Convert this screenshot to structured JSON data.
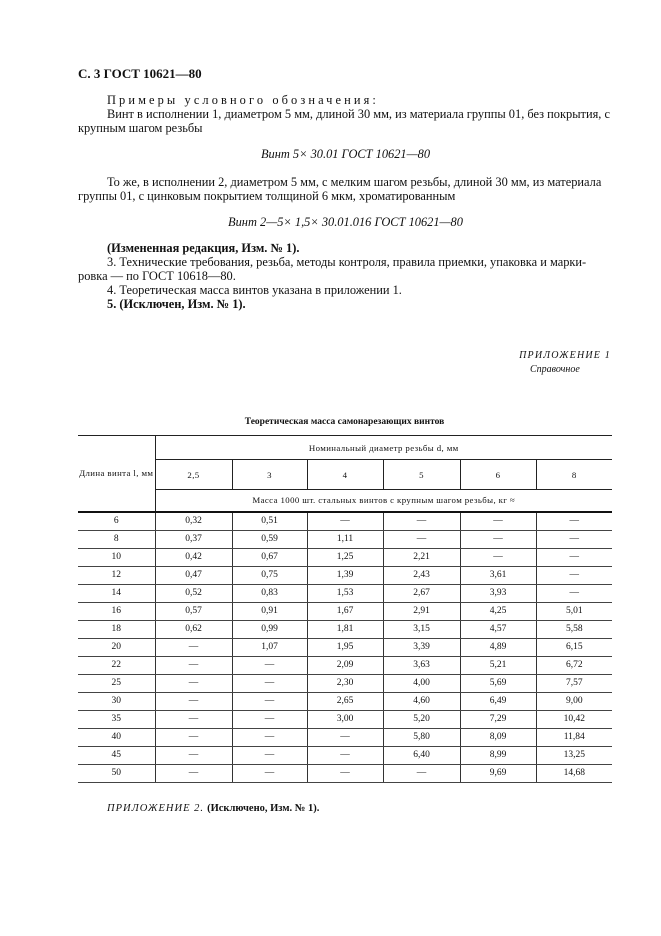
{
  "header": "С. 3 ГОСТ 10621—80",
  "examples_heading": "Примеры условного обозначения:",
  "example1_line1": "Винт в исполнении 1, диаметром 5 мм, длиной 30 мм, из материала группы 01, без покрытия, с",
  "example1_line2": "крупным шагом резьбы",
  "formula1": "Винт 5× 30.01 ГОСТ 10621—80",
  "example2_line1": "То же, в исполнении 2, диаметром 5 мм, с мелким шагом резьбы, длиной 30 мм, из материала",
  "example2_line2": "группы 01, с цинковым покрытием толщиной 6 мкм, хроматированным",
  "formula2": "Винт 2—5× 1,5× 30.01.016 ГОСТ 10621—80",
  "amended": "(Измененная редакция, Изм. № 1).",
  "item3_line1": "3.  Технические требования, резьба, методы контроля, правила приемки, упаковка и марки-",
  "item3_line2": "ровка — по ГОСТ 10618—80.",
  "item4": "4.  Теоретическая масса винтов указана в приложении 1.",
  "item5": "5.  (Исключен, Изм. № 1).",
  "appendix1": "ПРИЛОЖЕНИЕ 1",
  "appendix1_note": "Справочное",
  "table": {
    "title": "Теоретическая масса самонарезающих винтов",
    "length_header": "Длина винта l, мм",
    "diameter_header": "Номинальный диаметр резьбы d, мм",
    "diameters": [
      "2,5",
      "3",
      "4",
      "5",
      "6",
      "8"
    ],
    "mass_header": "Масса 1000 шт. стальных винтов с крупным шагом резьбы, кг ≈",
    "rows": [
      [
        "6",
        "0,32",
        "0,51",
        "—",
        "—",
        "—",
        "—"
      ],
      [
        "8",
        "0,37",
        "0,59",
        "1,11",
        "—",
        "—",
        "—"
      ],
      [
        "10",
        "0,42",
        "0,67",
        "1,25",
        "2,21",
        "—",
        "—"
      ],
      [
        "12",
        "0,47",
        "0,75",
        "1,39",
        "2,43",
        "3,61",
        "—"
      ],
      [
        "14",
        "0,52",
        "0,83",
        "1,53",
        "2,67",
        "3,93",
        "—"
      ],
      [
        "16",
        "0,57",
        "0,91",
        "1,67",
        "2,91",
        "4,25",
        "5,01"
      ],
      [
        "18",
        "0,62",
        "0,99",
        "1,81",
        "3,15",
        "4,57",
        "5,58"
      ],
      [
        "20",
        "—",
        "1,07",
        "1,95",
        "3,39",
        "4,89",
        "6,15"
      ],
      [
        "22",
        "—",
        "—",
        "2,09",
        "3,63",
        "5,21",
        "6,72"
      ],
      [
        "25",
        "—",
        "—",
        "2,30",
        "4,00",
        "5,69",
        "7,57"
      ],
      [
        "30",
        "—",
        "—",
        "2,65",
        "4,60",
        "6,49",
        "9,00"
      ],
      [
        "35",
        "—",
        "—",
        "3,00",
        "5,20",
        "7,29",
        "10,42"
      ],
      [
        "40",
        "—",
        "—",
        "—",
        "5,80",
        "8,09",
        "11,84"
      ],
      [
        "45",
        "—",
        "—",
        "—",
        "6,40",
        "8,99",
        "13,25"
      ],
      [
        "50",
        "—",
        "—",
        "—",
        "—",
        "9,69",
        "14,68"
      ]
    ]
  },
  "appendix2_label": "ПРИЛОЖЕНИЕ 2.",
  "appendix2_text": "(Исключено, Изм. № 1)."
}
